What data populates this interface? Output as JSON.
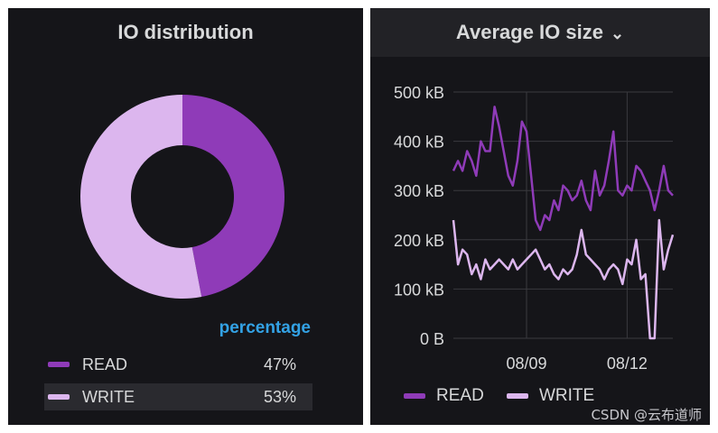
{
  "left_panel": {
    "title": "IO distribution",
    "legend_header": "percentage",
    "legend": [
      {
        "label": "READ",
        "value": "47%",
        "color": "#8f3bb8"
      },
      {
        "label": "WRITE",
        "value": "53%",
        "color": "#dcb6ee"
      }
    ]
  },
  "right_panel": {
    "title": "Average IO size",
    "dropdown_icon": "chevron-down-icon"
  },
  "watermark": "CSDN @云布道师",
  "chart_data": [
    {
      "type": "pie",
      "title": "IO distribution",
      "donut": true,
      "categories": [
        "READ",
        "WRITE"
      ],
      "values": [
        47,
        53
      ],
      "colors": [
        "#8f3bb8",
        "#dcb6ee"
      ]
    },
    {
      "type": "line",
      "title": "Average IO size",
      "ylim": [
        0,
        500
      ],
      "yticks": [
        0,
        100,
        200,
        300,
        400,
        500
      ],
      "ytick_labels": [
        "0 B",
        "100 kB",
        "200 kB",
        "300 kB",
        "400 kB",
        "500 kB"
      ],
      "xlim": [
        0,
        48
      ],
      "xticks": [
        16,
        38
      ],
      "xtick_labels": [
        "08/09",
        "08/12"
      ],
      "grid": true,
      "legend_position": "bottom",
      "series": [
        {
          "name": "READ",
          "color": "#8f3bb8",
          "x": [
            0,
            1,
            2,
            3,
            4,
            5,
            6,
            7,
            8,
            9,
            10,
            11,
            12,
            13,
            14,
            15,
            16,
            17,
            18,
            19,
            20,
            21,
            22,
            23,
            24,
            25,
            26,
            27,
            28,
            29,
            30,
            31,
            32,
            33,
            34,
            35,
            36,
            37,
            38,
            39,
            40,
            41,
            42,
            43,
            44,
            45,
            46,
            47,
            48
          ],
          "values": [
            340,
            360,
            340,
            380,
            360,
            330,
            400,
            380,
            380,
            470,
            430,
            380,
            330,
            310,
            360,
            440,
            420,
            330,
            240,
            220,
            250,
            240,
            280,
            260,
            310,
            300,
            280,
            290,
            320,
            280,
            260,
            340,
            290,
            310,
            360,
            420,
            300,
            290,
            310,
            300,
            350,
            340,
            320,
            300,
            260,
            300,
            350,
            300,
            290
          ]
        },
        {
          "name": "WRITE",
          "color": "#dcb6ee",
          "x": [
            0,
            1,
            2,
            3,
            4,
            5,
            6,
            7,
            8,
            9,
            10,
            11,
            12,
            13,
            14,
            15,
            16,
            17,
            18,
            19,
            20,
            21,
            22,
            23,
            24,
            25,
            26,
            27,
            28,
            29,
            30,
            31,
            32,
            33,
            34,
            35,
            36,
            37,
            38,
            39,
            40,
            41,
            42,
            43,
            44,
            45,
            46,
            47,
            48
          ],
          "values": [
            240,
            150,
            180,
            170,
            130,
            150,
            120,
            160,
            140,
            150,
            160,
            150,
            140,
            160,
            140,
            150,
            160,
            170,
            180,
            160,
            140,
            150,
            130,
            120,
            140,
            130,
            140,
            170,
            220,
            170,
            160,
            150,
            140,
            120,
            140,
            150,
            140,
            110,
            160,
            150,
            200,
            120,
            130,
            0,
            0,
            240,
            140,
            180,
            210
          ]
        }
      ]
    }
  ]
}
